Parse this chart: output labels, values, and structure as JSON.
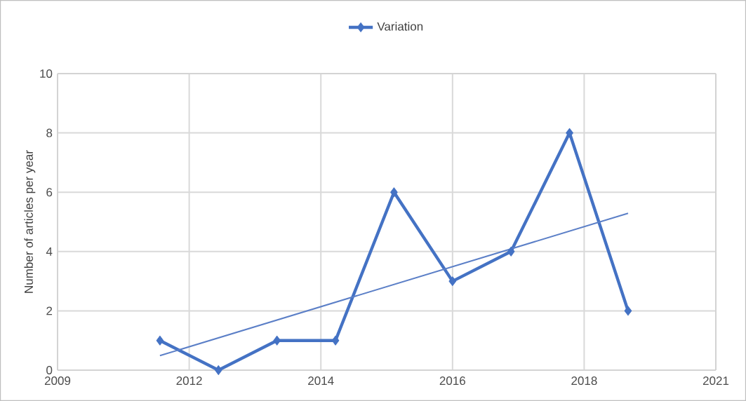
{
  "chart_data": {
    "type": "line",
    "ylabel": "Number of articles per year",
    "x": [
      2011,
      2012,
      2013,
      2014,
      2015,
      2016,
      2017,
      2018,
      2019
    ],
    "series": [
      {
        "name": "Variation",
        "color": "#4472c4",
        "values": [
          1,
          0,
          1,
          1,
          6,
          3,
          4,
          8,
          2
        ],
        "marker": "diamond"
      },
      {
        "type": "line",
        "color": "#5b7fc7",
        "x": [
          2011,
          2019
        ],
        "values": [
          0.49,
          5.29
        ],
        "marker": "none"
      }
    ],
    "xlim": [
      2009.25,
      2020.5
    ],
    "xticks": [
      {
        "value": 2009.25,
        "label": "2009"
      },
      {
        "value": 2011.5,
        "label": "2012"
      },
      {
        "value": 2013.75,
        "label": "2014"
      },
      {
        "value": 2016,
        "label": "2016"
      },
      {
        "value": 2018.25,
        "label": "2018"
      },
      {
        "value": 2020.5,
        "label": "2021"
      }
    ],
    "ylim": [
      0,
      10
    ],
    "yticks": [
      0,
      2,
      4,
      6,
      8,
      10
    ],
    "grid": true,
    "legend": "top",
    "line_style": "solid"
  }
}
